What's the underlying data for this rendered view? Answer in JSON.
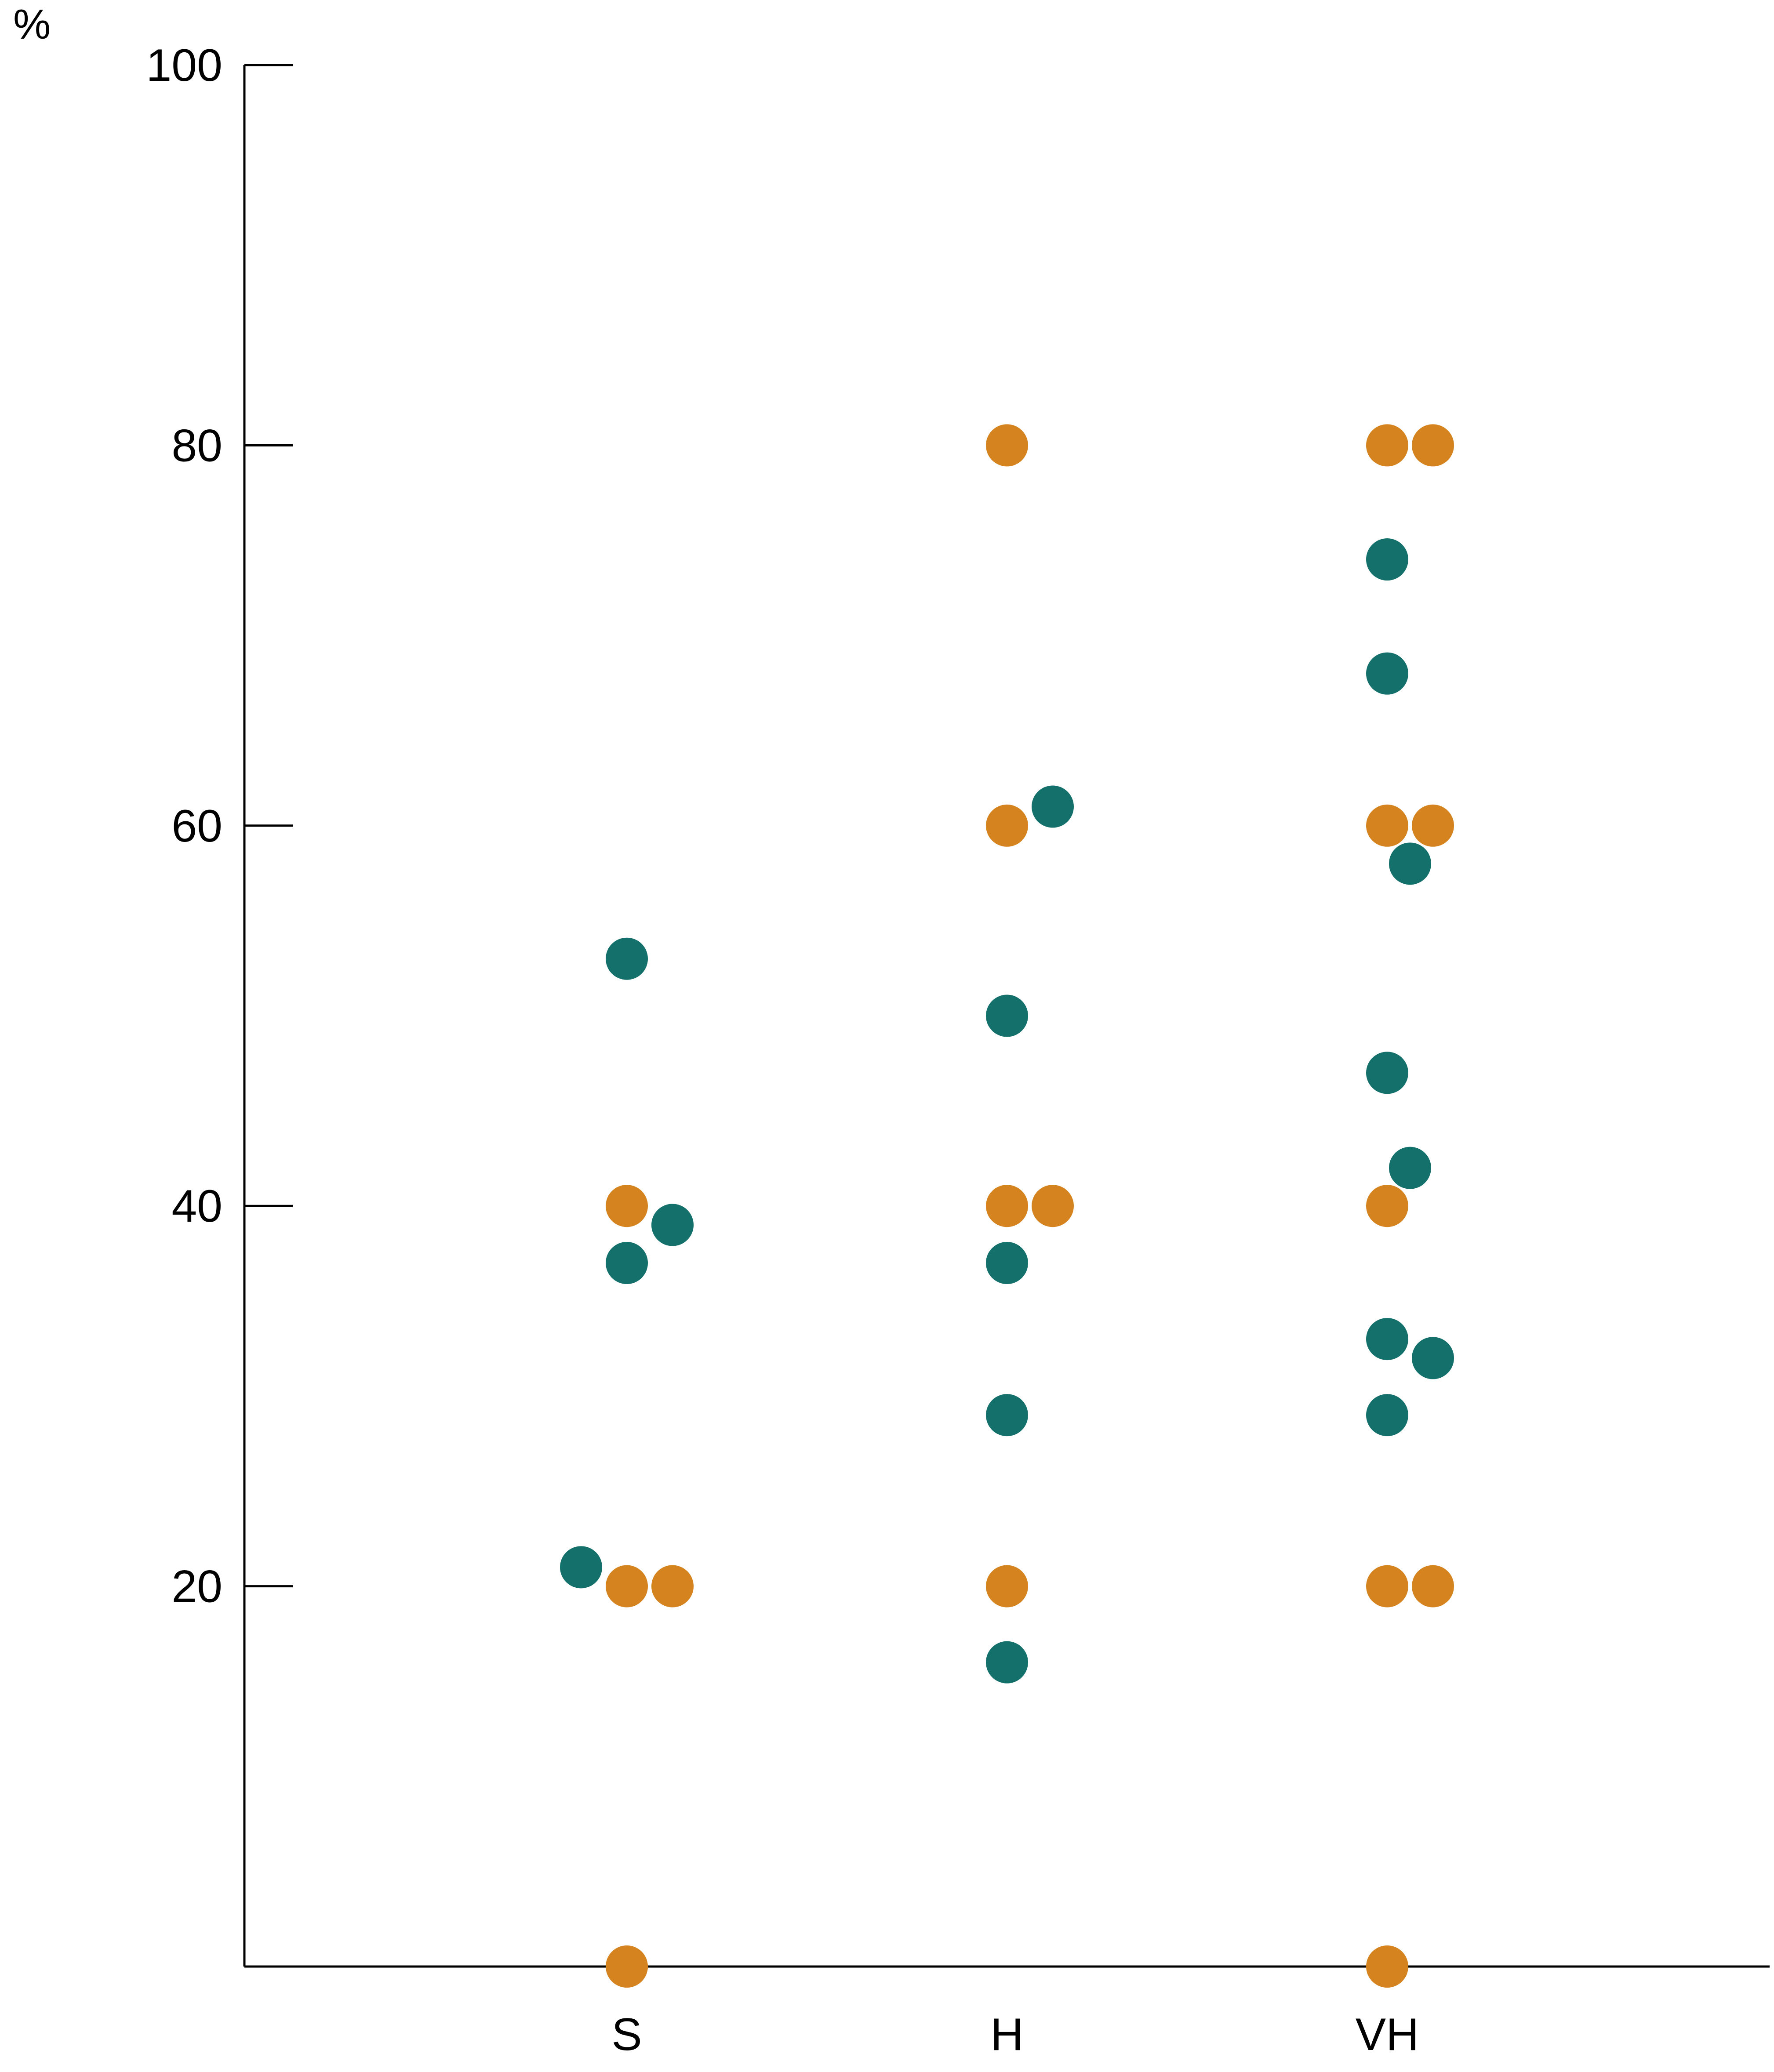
{
  "chart_data": {
    "type": "scatter",
    "title": "",
    "xlabel": "",
    "ylabel": "%",
    "categories": [
      "S",
      "H",
      "VH"
    ],
    "ylim": [
      0,
      100
    ],
    "yticks": [
      20,
      40,
      60,
      80,
      100
    ],
    "grid": false,
    "legend": "none",
    "series": [
      {
        "color": "#D4831E",
        "points": [
          {
            "category": "S",
            "value": 40
          },
          {
            "category": "S",
            "value": 20
          },
          {
            "category": "S",
            "value": 20
          },
          {
            "category": "S",
            "value": 0
          },
          {
            "category": "H",
            "value": 80
          },
          {
            "category": "H",
            "value": 60
          },
          {
            "category": "H",
            "value": 40
          },
          {
            "category": "H",
            "value": 40
          },
          {
            "category": "H",
            "value": 20
          },
          {
            "category": "VH",
            "value": 80
          },
          {
            "category": "VH",
            "value": 80
          },
          {
            "category": "VH",
            "value": 60
          },
          {
            "category": "VH",
            "value": 60
          },
          {
            "category": "VH",
            "value": 40
          },
          {
            "category": "VH",
            "value": 20
          },
          {
            "category": "VH",
            "value": 20
          },
          {
            "category": "VH",
            "value": 0
          }
        ]
      },
      {
        "color": "#13706B",
        "points": [
          {
            "category": "S",
            "value": 53
          },
          {
            "category": "S",
            "value": 39
          },
          {
            "category": "S",
            "value": 37
          },
          {
            "category": "S",
            "value": 21
          },
          {
            "category": "H",
            "value": 61
          },
          {
            "category": "H",
            "value": 50
          },
          {
            "category": "H",
            "value": 37
          },
          {
            "category": "H",
            "value": 29
          },
          {
            "category": "H",
            "value": 16
          },
          {
            "category": "VH",
            "value": 74
          },
          {
            "category": "VH",
            "value": 68
          },
          {
            "category": "VH",
            "value": 58
          },
          {
            "category": "VH",
            "value": 47
          },
          {
            "category": "VH",
            "value": 42
          },
          {
            "category": "VH",
            "value": 33
          },
          {
            "category": "VH",
            "value": 32
          },
          {
            "category": "VH",
            "value": 29
          }
        ]
      }
    ]
  }
}
